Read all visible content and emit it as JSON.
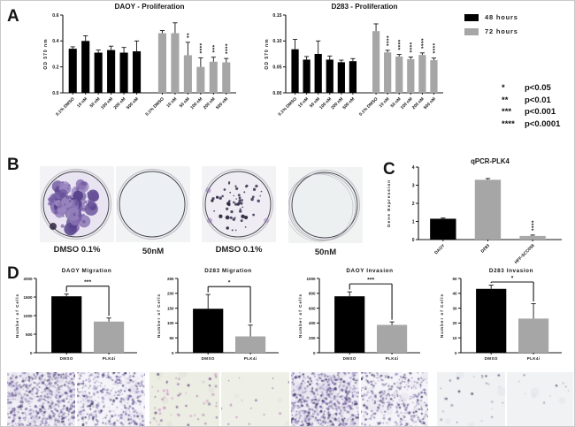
{
  "figure": {
    "panel_labels": {
      "a": "A",
      "b": "B",
      "c": "C",
      "d": "D"
    }
  },
  "legend": {
    "items": [
      {
        "label": "48 hours",
        "color": "#000000"
      },
      {
        "label": "72 hours",
        "color": "#a6a6a6"
      }
    ],
    "significance_key": [
      {
        "symbol": "*",
        "label": "p<0.05"
      },
      {
        "symbol": "**",
        "label": "p<0.01"
      },
      {
        "symbol": "***",
        "label": "p<0.001"
      },
      {
        "symbol": "****",
        "label": "p<0.0001"
      }
    ]
  },
  "chart_data": [
    {
      "type": "bar",
      "title": "DAOY - Proliferation",
      "ylabel": "OD 570 nm",
      "ylim": [
        0,
        0.6
      ],
      "yticks": [
        "0.0",
        "0.2",
        "0.4",
        "0.6"
      ],
      "categories": [
        "0.1% DMSO",
        "10 nM",
        "50 nM",
        "100 nM",
        "200 nM",
        "500 nM"
      ],
      "series": [
        {
          "name": "48 hours",
          "color": "#000000",
          "values": [
            0.34,
            0.4,
            0.31,
            0.33,
            0.31,
            0.32
          ],
          "errors": [
            0.015,
            0.04,
            0.02,
            0.03,
            0.04,
            0.08
          ],
          "sig": [
            "",
            "",
            "",
            "",
            "",
            ""
          ]
        },
        {
          "name": "72 hours",
          "color": "#a6a6a6",
          "values": [
            0.46,
            0.46,
            0.29,
            0.2,
            0.24,
            0.235
          ],
          "errors": [
            0.02,
            0.08,
            0.1,
            0.07,
            0.035,
            0.03
          ],
          "sig": [
            "",
            "",
            "**",
            "****",
            "***",
            "****"
          ]
        }
      ]
    },
    {
      "type": "bar",
      "title": "D283 - Proliferation",
      "ylabel": "OD 570 nm",
      "ylim": [
        0,
        0.15
      ],
      "yticks": [
        "0.00",
        "0.05",
        "0.10",
        "0.15"
      ],
      "categories": [
        "0.1% DMSO",
        "10 nM",
        "50 nM",
        "100 nM",
        "200 nM",
        "500 nM"
      ],
      "series": [
        {
          "name": "48 hours",
          "color": "#000000",
          "values": [
            0.084,
            0.064,
            0.075,
            0.064,
            0.059,
            0.061
          ],
          "errors": [
            0.019,
            0.006,
            0.025,
            0.007,
            0.004,
            0.005
          ],
          "sig": [
            "",
            "",
            "",
            "",
            "",
            ""
          ]
        },
        {
          "name": "72 hours",
          "color": "#a6a6a6",
          "values": [
            0.119,
            0.078,
            0.07,
            0.065,
            0.073,
            0.063
          ],
          "errors": [
            0.014,
            0.004,
            0.004,
            0.004,
            0.004,
            0.004
          ],
          "sig": [
            "",
            "****",
            "****",
            "****",
            "****",
            "****"
          ]
        }
      ]
    },
    {
      "type": "bar",
      "title": "qPCR-PLK4",
      "ylabel": "Gene Expression",
      "ylim": [
        0,
        4
      ],
      "yticks": [
        "0",
        "1",
        "2",
        "3",
        "4"
      ],
      "categories": [
        "DAOY",
        "D283",
        "HFF-SCC058"
      ],
      "values": [
        1.15,
        3.3,
        0.2
      ],
      "errors": [
        0.04,
        0.07,
        0.05
      ],
      "colors": [
        "#000000",
        "#a6a6a6",
        "#a9a9a9"
      ],
      "sig": [
        "",
        "",
        "****"
      ]
    },
    {
      "type": "bar",
      "title": "DAOY Migration",
      "ylabel": "Number of Cells",
      "ylim": [
        0,
        2000
      ],
      "yticks": [
        "0",
        "500",
        "1000",
        "1500",
        "2000"
      ],
      "categories": [
        "DMSO",
        "PLK4i"
      ],
      "values": [
        1520,
        840
      ],
      "errors": [
        60,
        95
      ],
      "colors": [
        "#000000",
        "#a6a6a6"
      ],
      "bracket_sig": "***"
    },
    {
      "type": "bar",
      "title": "D283 Migration",
      "ylabel": "Number of Cells",
      "ylim": [
        0,
        250
      ],
      "yticks": [
        "0",
        "50",
        "100",
        "150",
        "200",
        "250"
      ],
      "categories": [
        "DMSO",
        "PLK4i"
      ],
      "values": [
        148,
        55
      ],
      "errors": [
        48,
        38
      ],
      "colors": [
        "#000000",
        "#a6a6a6"
      ],
      "bracket_sig": "*"
    },
    {
      "type": "bar",
      "title": "DAOY Invasion",
      "ylabel": "Number of Cells",
      "ylim": [
        0,
        1000
      ],
      "yticks": [
        "0",
        "200",
        "400",
        "600",
        "800",
        "1000"
      ],
      "categories": [
        "DMSO",
        "PLK4i"
      ],
      "values": [
        760,
        375
      ],
      "errors": [
        60,
        40
      ],
      "colors": [
        "#000000",
        "#a6a6a6"
      ],
      "bracket_sig": "***"
    },
    {
      "type": "bar",
      "title": "D283 Invasion",
      "ylabel": "Number of Cells",
      "ylim": [
        0,
        50
      ],
      "yticks": [
        "0",
        "10",
        "20",
        "30",
        "40",
        "50"
      ],
      "categories": [
        "DMSO",
        "PLK4i"
      ],
      "values": [
        43,
        23
      ],
      "errors": [
        2.5,
        10
      ],
      "colors": [
        "#000000",
        "#a6a6a6"
      ],
      "bracket_sig": "*"
    }
  ],
  "colony_assay": {
    "dishes": [
      {
        "label": "DMSO 0.1%",
        "appearance": "dense large purple colonies"
      },
      {
        "label": "50nM",
        "appearance": "no colonies"
      },
      {
        "label": "DMSO 0.1%",
        "appearance": "scattered small dark colonies"
      },
      {
        "label": "50nM",
        "appearance": "no colonies"
      }
    ]
  },
  "micrographs": [
    {
      "assay": "DAOY Migration",
      "condition": "DMSO",
      "appearance": "dense purple-stained cells"
    },
    {
      "assay": "DAOY Migration",
      "condition": "PLK4i",
      "appearance": "moderate purple-stained cells"
    },
    {
      "assay": "D283 Migration",
      "condition": "DMSO",
      "appearance": "sparse pink-stained cells"
    },
    {
      "assay": "D283 Migration",
      "condition": "PLK4i",
      "appearance": "very sparse pink-stained cells"
    },
    {
      "assay": "DAOY Invasion",
      "condition": "DMSO",
      "appearance": "dense purple-stained cells"
    },
    {
      "assay": "DAOY Invasion",
      "condition": "PLK4i",
      "appearance": "moderate purple-stained cells"
    },
    {
      "assay": "D283 Invasion",
      "condition": "DMSO",
      "appearance": "few dark-stained cells"
    },
    {
      "assay": "D283 Invasion",
      "condition": "PLK4i",
      "appearance": "minimal stained cells"
    }
  ]
}
